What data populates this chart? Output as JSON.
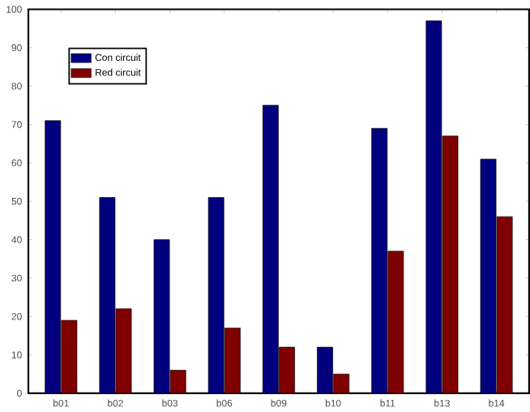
{
  "chart_data": {
    "type": "bar",
    "categories": [
      "b01",
      "b02",
      "b03",
      "b06",
      "b09",
      "b10",
      "b11",
      "b13",
      "b14"
    ],
    "series": [
      {
        "name": "Con circuit",
        "color": "#00007f",
        "values": [
          71,
          51,
          40,
          51,
          75,
          12,
          69,
          97,
          61
        ]
      },
      {
        "name": "Red circuit",
        "color": "#7f0000",
        "values": [
          19,
          22,
          6,
          17,
          12,
          5,
          37,
          67,
          46
        ]
      }
    ],
    "ylim": [
      0,
      100
    ],
    "yticks": [
      0,
      10,
      20,
      30,
      40,
      50,
      60,
      70,
      80,
      90,
      100
    ],
    "legend": "top left",
    "grid": false
  }
}
